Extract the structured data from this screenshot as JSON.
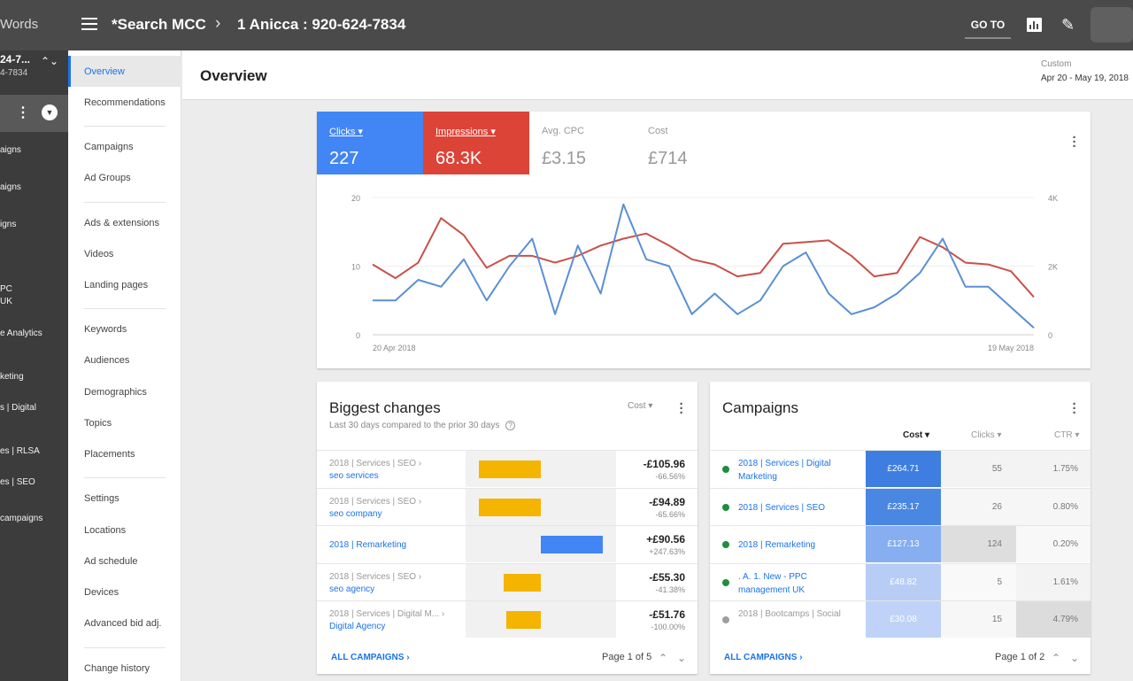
{
  "topbar": {
    "brand": "Words",
    "breadcrumb_root": "*Search MCC",
    "breadcrumb_separator": "›",
    "breadcrumb_account": "1 Anicca : 920-624-7834",
    "goto_label": "GO TO",
    "tools_glyph": "✎"
  },
  "rail": {
    "account_id": "24-7...",
    "account_phone": "4-7834",
    "sort_glyph": "⌃⌄",
    "menu_dots": "⋮",
    "circle_glyph": "▼",
    "items": [
      "aigns",
      "aigns",
      "igns",
      "PC",
      "UK",
      "e Analytics",
      "keting",
      "s | Digital",
      "es | RLSA",
      "es | SEO",
      "campaigns"
    ]
  },
  "subnav": {
    "active": "Overview",
    "items": [
      "Recommendations",
      "Campaigns",
      "Ad Groups",
      "Ads & extensions",
      "Videos",
      "Landing pages",
      "Keywords",
      "Audiences",
      "Demographics",
      "Topics",
      "Placements",
      "Settings",
      "Locations",
      "Ad schedule",
      "Devices",
      "Advanced bid adj.",
      "Change history"
    ]
  },
  "header": {
    "title": "Overview",
    "range_label": "Custom",
    "range_value": "Apr 20 - May 19, 2018"
  },
  "metrics": [
    {
      "label": "Clicks",
      "value": "227",
      "has_dropdown": true,
      "color": "#4285f4"
    },
    {
      "label": "Impressions",
      "value": "68.3K",
      "has_dropdown": true,
      "color": "#db4437"
    },
    {
      "label": "Avg. CPC",
      "value": "£3.15",
      "has_dropdown": false
    },
    {
      "label": "Cost",
      "value": "£714",
      "has_dropdown": false
    }
  ],
  "chart_data": {
    "type": "line",
    "x_start_label": "20 Apr 2018",
    "x_end_label": "19 May 2018",
    "y_left_ticks": [
      "20",
      "10",
      "0"
    ],
    "y_right_ticks": [
      "4K",
      "2K",
      "0"
    ],
    "ylim_left": [
      0,
      20
    ],
    "ylim_right": [
      0,
      4000
    ],
    "grid": true,
    "series": [
      {
        "name": "Clicks",
        "axis": "left",
        "color": "#5b8fd4",
        "values": [
          5,
          5,
          8,
          7,
          11,
          5,
          10,
          14,
          3,
          13,
          6,
          19,
          11,
          10,
          3,
          6,
          3,
          5,
          10,
          12,
          6,
          3,
          4,
          6,
          9,
          14,
          7,
          7,
          4,
          1
        ]
      },
      {
        "name": "Impressions",
        "axis": "right",
        "color": "#c8504a",
        "values": [
          2050,
          1650,
          2100,
          3400,
          2900,
          1950,
          2300,
          2300,
          2100,
          2300,
          2600,
          2800,
          2950,
          2600,
          2200,
          2050,
          1700,
          1800,
          2650,
          2700,
          2750,
          2300,
          1700,
          1800,
          2850,
          2550,
          2100,
          2050,
          1850,
          1100
        ]
      }
    ]
  },
  "changes": {
    "title": "Biggest changes",
    "subtitle": "Last 30 days compared to the prior 30 days",
    "help_glyph": "?",
    "metric_dropdown": "Cost",
    "rows": [
      {
        "path": "2018 | Services | SEO ›",
        "name": "seo services",
        "change": "-£105.96",
        "pct": "-66.56%",
        "direction": "down",
        "magnitude": 1.0
      },
      {
        "path": "2018 | Services | SEO ›",
        "name": "seo company",
        "change": "-£94.89",
        "pct": "-65.66%",
        "direction": "down",
        "magnitude": 1.0
      },
      {
        "path": "",
        "name": "2018 | Remarketing",
        "change": "+£90.56",
        "pct": "+247.63%",
        "direction": "up",
        "magnitude": 1.0
      },
      {
        "path": "2018 | Services | SEO ›",
        "name": "seo agency",
        "change": "-£55.30",
        "pct": "-41.38%",
        "direction": "down",
        "magnitude": 0.6
      },
      {
        "path": "2018 | Services | Digital M... ›",
        "name": "Digital Agency",
        "change": "-£51.76",
        "pct": "-100.00%",
        "direction": "down",
        "magnitude": 0.55
      }
    ],
    "footer_link": "ALL CAMPAIGNS",
    "pagination": "Page 1 of 5"
  },
  "campaigns": {
    "title": "Campaigns",
    "columns": [
      "Cost",
      "Clicks",
      "CTR"
    ],
    "rows": [
      {
        "name": "2018 | Services | Digital Marketing",
        "cost": "£264.71",
        "clicks": "55",
        "ctr": "1.75%",
        "status": "enabled",
        "cost_shade": "#3d7ee0",
        "clicks_shade": "#f3f3f3",
        "ctr_shade": "#f3f3f3"
      },
      {
        "name": "2018 | Services | SEO",
        "cost": "£235.17",
        "clicks": "26",
        "ctr": "0.80%",
        "status": "enabled",
        "cost_shade": "#4a87e3",
        "clicks_shade": "#f6f6f6",
        "ctr_shade": "#f6f6f6"
      },
      {
        "name": "2018 | Remarketing",
        "cost": "£127.13",
        "clicks": "124",
        "ctr": "0.20%",
        "status": "enabled",
        "cost_shade": "#86aef0",
        "clicks_shade": "#dedede",
        "ctr_shade": "#f8f8f8"
      },
      {
        "name": ". A. 1. New - PPC management UK",
        "cost": "£48.82",
        "clicks": "5",
        "ctr": "1.61%",
        "status": "enabled",
        "cost_shade": "#b7cdf5",
        "clicks_shade": "#f9f9f9",
        "ctr_shade": "#f3f3f3"
      },
      {
        "name": "2018 | Bootcamps | Social",
        "cost": "£30.08",
        "clicks": "15",
        "ctr": "4.79%",
        "status": "paused",
        "cost_shade": "#bed3f7",
        "clicks_shade": "#f7f7f7",
        "ctr_shade": "#dcdcdc"
      }
    ],
    "footer_link": "ALL CAMPAIGNS",
    "pagination": "Page 1 of 2"
  },
  "colors": {
    "accent": "#1a73e8",
    "enabled": "#1e8e3e",
    "paused": "#9e9e9e",
    "decrease_bar": "#f4b400",
    "increase_bar": "#4285f4"
  }
}
